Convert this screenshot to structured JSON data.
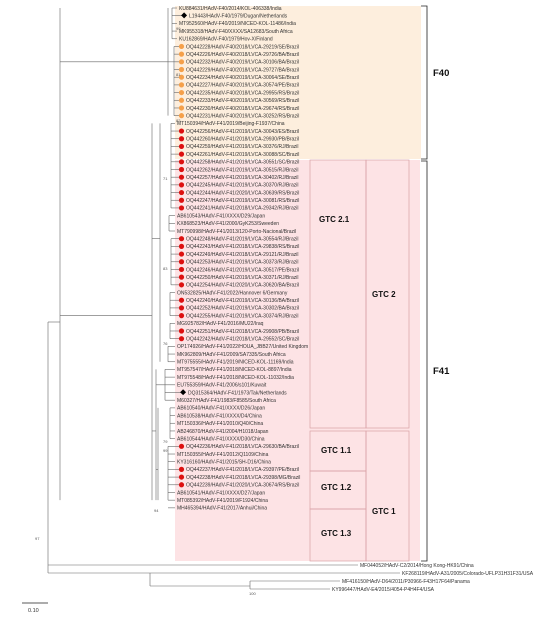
{
  "colors": {
    "f40_bg": "#fdeedd",
    "f41_bg": "#fde3e5",
    "box": "#d9a0a6",
    "orange_marker": "#f5a04a",
    "red_marker": "#dd1010",
    "ref_marker": "#000000",
    "branch": "#666666"
  },
  "groups": {
    "f40": "F40",
    "f41": "F41",
    "gtc1": "GTC 1",
    "gtc2": "GTC 2",
    "gtc11": "GTC 1.1",
    "gtc12": "GTC 1.2",
    "gtc13": "GTC 1.3",
    "gtc21": "GTC 2.1"
  },
  "scale_bar": {
    "label": "0.10"
  },
  "bootstrap": [
    "99",
    "81",
    "82",
    "71",
    "83",
    "76",
    "79",
    "99",
    "94",
    "97",
    "100"
  ],
  "leaves": [
    {
      "label": "KU884631/HAdV-F40/2014/KOL-406338/India",
      "marker": "none"
    },
    {
      "label": "L19443/HAdV-F40/1979/Dugan/Netherlands",
      "marker": "ref"
    },
    {
      "label": "MT952560/HAdV-F40/2019/NICED-KOL-11486/India",
      "marker": "none"
    },
    {
      "label": "MK955318/HAdV-F40/XXXX/SA12683/South Africa",
      "marker": "none"
    },
    {
      "label": "KU162869/HAdV-F40/1979/Hov-X/Finland",
      "marker": "none"
    },
    {
      "label": "OQ442228/HAdV-F40/2018/LVCA-29219/SE/Brazil",
      "marker": "orange"
    },
    {
      "label": "OQ442226/HAdV-F40/2018/LVCA-29726/BA/Brazil",
      "marker": "orange"
    },
    {
      "label": "OQ442232/HAdV-F40/2019/LVCA-30106/BA/Brazil",
      "marker": "orange"
    },
    {
      "label": "OQ442229/HAdV-F40/2018/LVCA-29727/BA/Brazil",
      "marker": "orange"
    },
    {
      "label": "OQ442234/HAdV-F40/2019/LVCA-30064/SE/Brazil",
      "marker": "orange"
    },
    {
      "label": "OQ442227/HAdV-F40/2019/LVCA-30574/PE/Brazil",
      "marker": "orange"
    },
    {
      "label": "OQ442235/HAdV-F40/2018/LVCA-29955/RS/Brazil",
      "marker": "orange"
    },
    {
      "label": "OQ442233/HAdV-F40/2019/LVCA-30569/RS/Brazil",
      "marker": "orange"
    },
    {
      "label": "OQ442230/HAdV-F40/2018/LVCA-29674/RS/Brazil",
      "marker": "orange"
    },
    {
      "label": "OQ442231/HAdV-F40/2019/LVCA-30252/RS/Brazil",
      "marker": "orange"
    },
    {
      "label": "MT150394/HAdV-F41/2019/Beijing-F1937/China",
      "marker": "none"
    },
    {
      "label": "OQ442256/HAdV-F41/2019/LVCA-30043/ES/Brazil",
      "marker": "red"
    },
    {
      "label": "OQ442260/HAdV-F41/2018/LVCA-29930/PB/Brazil",
      "marker": "red"
    },
    {
      "label": "OQ442259/HAdV-F41/2019/LVCA-30376/RJ/Brazil",
      "marker": "red"
    },
    {
      "label": "OQ442261/HAdV-F41/2019/LVCA-30088/SC/Brazil",
      "marker": "red"
    },
    {
      "label": "OQ442258/HAdV-F41/2019/LVCA-30551/SC/Brazil",
      "marker": "red"
    },
    {
      "label": "OQ442262/HAdV-F41/2019/LVCA-30515/RJ/Brazil",
      "marker": "red"
    },
    {
      "label": "OQ442257/HAdV-F41/2019/LVCA-30402/RJ/Brazil",
      "marker": "red"
    },
    {
      "label": "OQ442245/HAdV-F41/2019/LVCA-30370/RJ/Brazil",
      "marker": "red"
    },
    {
      "label": "OQ442244/HAdV-F41/2020/LVCA-30639/RS/Brazil",
      "marker": "red"
    },
    {
      "label": "OQ442247/HAdV-F41/2019/LVCA-30081/RS/Brazil",
      "marker": "red"
    },
    {
      "label": "OQ442241/HAdV-F41/2018/LVCA-29342/RJ/Brazil",
      "marker": "red"
    },
    {
      "label": "AB610543/HAdV-F41/XXXX/D29/Japan",
      "marker": "none"
    },
    {
      "label": "KX868523/HAdV-F41/2000/GyK253/Sweeden",
      "marker": "none"
    },
    {
      "label": "MT790998/HAdV-F41/2013/120-Porto-Nacional/Brazil",
      "marker": "none"
    },
    {
      "label": "OQ442248/HAdV-F41/2019/LVCA-30554/RJ/Brazil",
      "marker": "red"
    },
    {
      "label": "OQ442243/HAdV-F41/2018/LVCA-29838/RS/Brazil",
      "marker": "red"
    },
    {
      "label": "OQ442249/HAdV-F41/2018/LVCA-29121/RJ/Brazil",
      "marker": "red"
    },
    {
      "label": "OQ442253/HAdV-F41/2019/LVCA-30373/RJ/Brazil",
      "marker": "red"
    },
    {
      "label": "OQ442246/HAdV-F41/2019/LVCA-30517/PE/Brazil",
      "marker": "red"
    },
    {
      "label": "OQ442250/HAdV-F41/2019/LVCA-30371/RJ/Brazil",
      "marker": "red"
    },
    {
      "label": "OQ442254/HAdV-F41/2020/LVCA-30620/BA/Brazil",
      "marker": "red"
    },
    {
      "label": "ON532825/HAdV-F41/2022/Hannover 6/Germany",
      "marker": "none"
    },
    {
      "label": "OQ442240/HAdV-F41/2019/LVCA-30136/BA/Brazil",
      "marker": "red"
    },
    {
      "label": "OQ442252/HAdV-F41/2019/LVCA-30302/BA/Brazil",
      "marker": "red"
    },
    {
      "label": "OQ442255/HAdV-F41/2019/LVCA-30374/RJ/Brazil",
      "marker": "red"
    },
    {
      "label": "MG925782/HAdV-F41/2016/MU22/Iraq",
      "marker": "none"
    },
    {
      "label": "OQ442251/HAdV-F41/2018/LVCA-29908/PB/Brazil",
      "marker": "red"
    },
    {
      "label": "OQ442242/HAdV-F41/2018/LVCA-29552/SC/Brazil",
      "marker": "red"
    },
    {
      "label": "OP174926/HAdV-F41/2022/HOUA_JBB27/United Kingdom",
      "marker": "none"
    },
    {
      "label": "MK962809/HAdV-F41/2009/SA7335/South Africa",
      "marker": "none"
    },
    {
      "label": "MT975555/HAdV-F41/2019/NICED-KOL-11169/India",
      "marker": "none"
    },
    {
      "label": "MT957547/HAdV-F41/2018/NICED-KOL-8897/India",
      "marker": "none"
    },
    {
      "label": "MT975548/HAdV-F41/2018/NICED-KOL-11032/India",
      "marker": "none"
    },
    {
      "label": "EU755359/HAdV-F41/2006/s101/Kuwait",
      "marker": "none"
    },
    {
      "label": "DQ315364/HAdV-F41/1973/Tak/Netherlands",
      "marker": "ref"
    },
    {
      "label": "M60327/HAdV-F41/1983/F8585/South Africa",
      "marker": "none"
    },
    {
      "label": "AB610540/HAdV-F41/XXXX/D26/Japan",
      "marker": "none"
    },
    {
      "label": "AB610538/HAdV-F41/XXXX/D4/China",
      "marker": "none"
    },
    {
      "label": "MT150336/HAdV-F41/2010/Q40/China",
      "marker": "none"
    },
    {
      "label": "AB246870/HAdV-F41/2004/H1018/Japan",
      "marker": "none"
    },
    {
      "label": "AB610544/HAdV-F41/XXXX/D30/China",
      "marker": "none"
    },
    {
      "label": "OQ442236/HAdV-F41/2018/LVCA-29630/BA/Brazil",
      "marker": "red"
    },
    {
      "label": "MT150355/HAdV-F41/2012/Q1109/China",
      "marker": "none"
    },
    {
      "label": "KY316160/HAdV-F41/2015/SH-D16/China",
      "marker": "none"
    },
    {
      "label": "OQ442237/HAdV-F41/2018/LVCA-29397/PE/Brazil",
      "marker": "red"
    },
    {
      "label": "OQ442238/HAdV-F41/2018/LVCA-29398/MG/Brazil",
      "marker": "red"
    },
    {
      "label": "OQ442239/HAdV-F41/2020/LVCA-30674/RS/Brazil",
      "marker": "red"
    },
    {
      "label": "AB610541/HAdV-F41/XXXX/D27/Japan",
      "marker": "none"
    },
    {
      "label": "MT085392/HAdV-F41/2019/F1924/China",
      "marker": "none"
    },
    {
      "label": "MH465394/HAdV-F41/2017/Anhui/China",
      "marker": "none"
    }
  ],
  "outgroups": [
    {
      "label": "MF044052/HAdV-C2/2014/Hong Kong-HK91/China",
      "marker": "none"
    },
    {
      "label": "KF268119/HAdV-A31/2005/Colorado-UFLP31H31F31/USA",
      "marker": "none"
    },
    {
      "label": "MF416150/HAdV-D64/2011/P30966-F43H17F64/Panama",
      "marker": "none"
    },
    {
      "label": "KY996447/HAdV-E4/2015/4054-P4H4F4/USA",
      "marker": "none"
    }
  ]
}
